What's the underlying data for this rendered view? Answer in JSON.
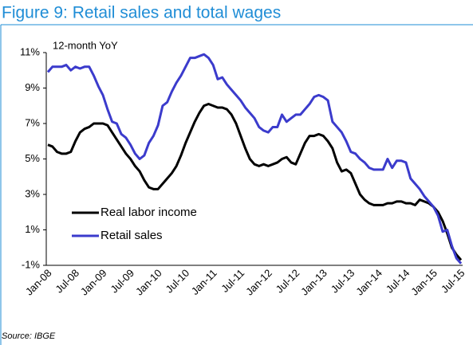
{
  "chart_data": {
    "type": "line",
    "title": "Figure 9: Retail sales and total wages",
    "subtitle": "12-month YoY",
    "source": "Source: IBGE",
    "legend": "lower left",
    "categories": [
      "Jan-08",
      null,
      null,
      null,
      null,
      null,
      "Jul-08",
      null,
      null,
      null,
      null,
      null,
      "Jan-09",
      null,
      null,
      null,
      null,
      null,
      "Jul-09",
      null,
      null,
      null,
      null,
      null,
      "Jan-10",
      null,
      null,
      null,
      null,
      null,
      "Jul-10",
      null,
      null,
      null,
      null,
      null,
      "Jan-11",
      null,
      null,
      null,
      null,
      null,
      "Jul-11",
      null,
      null,
      null,
      null,
      null,
      "Jan-12",
      null,
      null,
      null,
      null,
      null,
      "Jul-12",
      null,
      null,
      null,
      null,
      null,
      "Jan-13",
      null,
      null,
      null,
      null,
      null,
      "Jul-13",
      null,
      null,
      null,
      null,
      null,
      "Jan-14",
      null,
      null,
      null,
      null,
      null,
      "Jul-14",
      null,
      null,
      null,
      null,
      null,
      "Jan-15",
      null,
      null,
      null,
      null,
      null,
      "Jul-15"
    ],
    "series": [
      {
        "name": "Real labor income",
        "color": "#000000",
        "values": [
          5.8,
          5.7,
          5.4,
          5.3,
          5.3,
          5.4,
          6.0,
          6.5,
          6.7,
          6.8,
          7.0,
          7.0,
          7.0,
          6.9,
          6.5,
          6.1,
          5.7,
          5.3,
          5.0,
          4.6,
          4.3,
          3.8,
          3.4,
          3.3,
          3.3,
          3.6,
          3.9,
          4.2,
          4.6,
          5.2,
          5.9,
          6.5,
          7.1,
          7.6,
          8.0,
          8.1,
          8.0,
          7.9,
          7.9,
          7.8,
          7.5,
          7.0,
          6.3,
          5.6,
          5.0,
          4.7,
          4.6,
          4.7,
          4.6,
          4.7,
          4.8,
          5.0,
          5.1,
          4.8,
          4.7,
          5.3,
          5.9,
          6.3,
          6.3,
          6.4,
          6.3,
          6.0,
          5.6,
          4.8,
          4.3,
          4.4,
          4.2,
          3.6,
          3.0,
          2.7,
          2.5,
          2.4,
          2.4,
          2.4,
          2.5,
          2.5,
          2.6,
          2.6,
          2.5,
          2.5,
          2.4,
          2.7,
          2.6,
          2.5,
          2.3,
          2.0,
          1.5,
          0.8,
          0.0,
          -0.4,
          -0.7
        ]
      },
      {
        "name": "Retail sales",
        "color": "#3b3bcc",
        "values": [
          9.9,
          10.2,
          10.2,
          10.2,
          10.3,
          10.0,
          10.2,
          10.1,
          10.2,
          10.2,
          9.7,
          9.1,
          8.6,
          7.8,
          7.1,
          7.0,
          6.4,
          6.2,
          5.8,
          5.3,
          5.0,
          5.2,
          5.9,
          6.3,
          6.9,
          8.0,
          8.2,
          8.8,
          9.3,
          9.7,
          10.2,
          10.7,
          10.7,
          10.8,
          10.9,
          10.7,
          10.3,
          9.5,
          9.6,
          9.2,
          8.9,
          8.6,
          8.3,
          7.9,
          7.6,
          7.3,
          6.8,
          6.6,
          6.5,
          6.8,
          6.8,
          7.5,
          7.1,
          7.3,
          7.5,
          7.5,
          7.8,
          8.1,
          8.5,
          8.6,
          8.5,
          8.3,
          7.1,
          6.8,
          6.5,
          6.0,
          5.4,
          5.3,
          5.0,
          4.8,
          4.5,
          4.4,
          4.4,
          4.4,
          5.0,
          4.5,
          4.9,
          4.9,
          4.8,
          3.9,
          3.6,
          3.3,
          2.9,
          2.6,
          2.3,
          1.8,
          0.9,
          1.0,
          0.1,
          -0.6,
          -0.9
        ]
      }
    ],
    "ylim": [
      -1,
      11
    ],
    "yticks": [
      {
        "value": -1,
        "label": "-1%"
      },
      {
        "value": 1,
        "label": "1%"
      },
      {
        "value": 3,
        "label": "3%"
      },
      {
        "value": 5,
        "label": "5%"
      },
      {
        "value": 7,
        "label": "7%"
      },
      {
        "value": 9,
        "label": "9%"
      },
      {
        "value": 11,
        "label": "11%"
      }
    ],
    "grid": false
  }
}
